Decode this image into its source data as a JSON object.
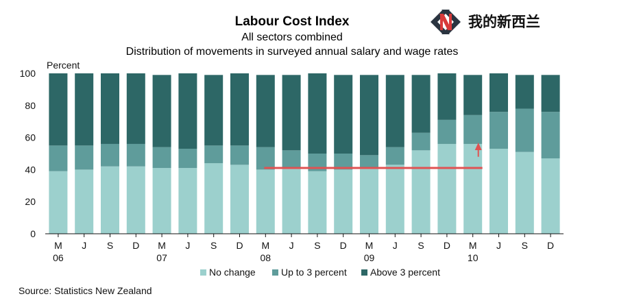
{
  "logo": {
    "text": "我的新西兰",
    "colors": {
      "red": "#d83a3a",
      "dark": "#2a3440"
    }
  },
  "chart_data": {
    "type": "bar",
    "stacked": true,
    "title": "Labour Cost Index",
    "subtitle": "All sectors combined",
    "subtitle2": "Distribution of movements in surveyed annual salary and wage rates",
    "ylabel": "Percent",
    "ylim": [
      0,
      100
    ],
    "yticks": [
      0,
      20,
      40,
      60,
      80,
      100
    ],
    "grid": false,
    "categories": [
      "M",
      "J",
      "S",
      "D",
      "M",
      "J",
      "S",
      "D",
      "M",
      "J",
      "S",
      "D",
      "M",
      "J",
      "S",
      "D",
      "M",
      "J",
      "S",
      "D"
    ],
    "year_labels": [
      "06",
      "",
      "",
      "",
      "07",
      "",
      "",
      "",
      "08",
      "",
      "",
      "",
      "09",
      "",
      "",
      "",
      "10",
      "",
      "",
      ""
    ],
    "series": [
      {
        "name": "No change",
        "color": "#9cd0cd",
        "values": [
          39,
          40,
          42,
          42,
          41,
          41,
          44,
          43,
          40,
          41,
          39,
          40,
          41,
          43,
          52,
          56,
          56,
          53,
          51,
          47
        ]
      },
      {
        "name": "Up to 3 percent",
        "color": "#5f9c9b",
        "values": [
          16,
          15,
          14,
          14,
          13,
          12,
          11,
          12,
          14,
          11,
          11,
          10,
          8,
          11,
          11,
          15,
          18,
          23,
          27,
          29
        ]
      },
      {
        "name": "Above 3 percent",
        "color": "#2d6766",
        "values": [
          45,
          45,
          44,
          44,
          45,
          47,
          44,
          45,
          45,
          47,
          50,
          49,
          50,
          45,
          36,
          29,
          25,
          24,
          21,
          23
        ]
      }
    ],
    "annotations": [
      {
        "type": "horizontal-line",
        "y": 41,
        "from_index": 8,
        "to_index": 16,
        "color": "#e05252"
      },
      {
        "type": "arrow-up",
        "index": 16,
        "y_from": 48,
        "y_to": 56,
        "color": "#e05252"
      }
    ],
    "legend_position": "bottom",
    "source": "Source: Statistics New Zealand"
  }
}
